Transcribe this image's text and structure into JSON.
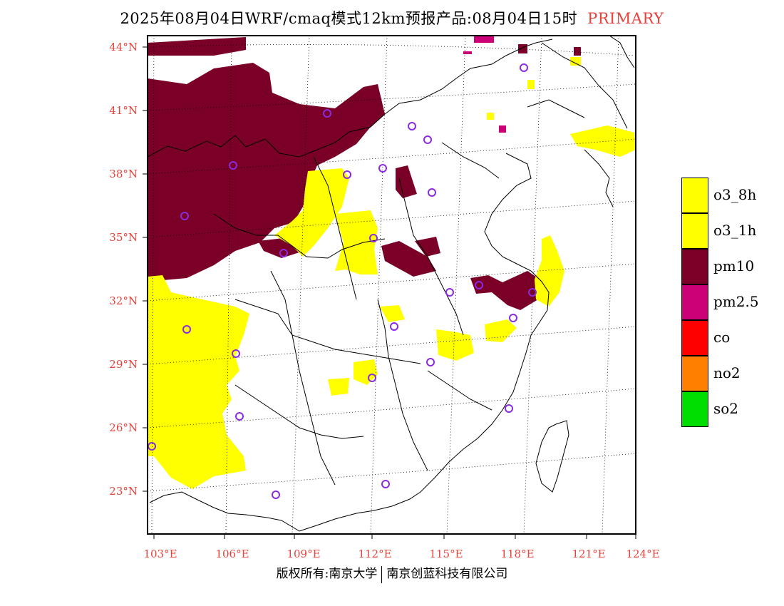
{
  "header": {
    "title": "2025年08月04日WRF/cmaq模式12km预报产品:08月04日15时",
    "type_tag": "PRIMARY"
  },
  "map": {
    "lat_labels": [
      "44°N",
      "41°N",
      "38°N",
      "35°N",
      "32°N",
      "29°N",
      "26°N",
      "23°N"
    ],
    "lon_labels": [
      "103°E",
      "106°E",
      "109°E",
      "112°E",
      "115°E",
      "118°E",
      "121°E",
      "124°E"
    ],
    "label_color": "#e8423c",
    "station_marker_color": "#8a2be2"
  },
  "legend": {
    "items": [
      {
        "label": "o3_8h",
        "color": "#ffff00"
      },
      {
        "label": "o3_1h",
        "color": "#ffff00"
      },
      {
        "label": "pm10",
        "color": "#7b0028"
      },
      {
        "label": "pm2.5",
        "color": "#cc0077"
      },
      {
        "label": "co",
        "color": "#ff0000"
      },
      {
        "label": "no2",
        "color": "#ff8000"
      },
      {
        "label": "so2",
        "color": "#00dd00"
      }
    ]
  },
  "footer": {
    "copyright": "版权所有:南京大学",
    "company": "南京创蓝科技有限公司"
  }
}
